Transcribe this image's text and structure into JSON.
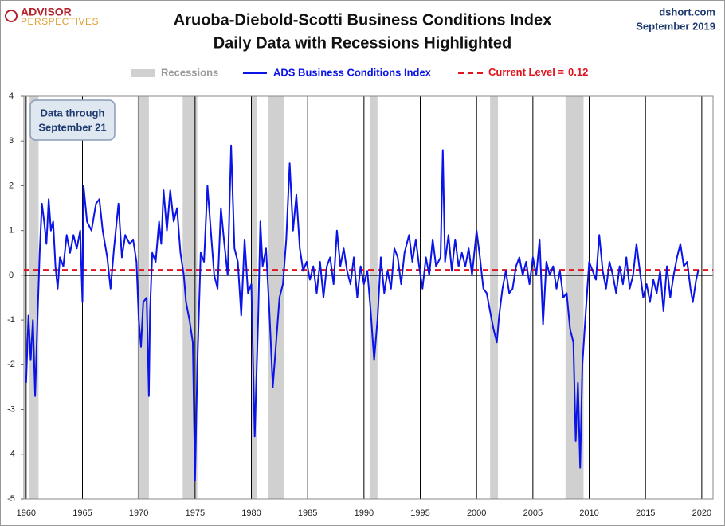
{
  "chart_data": {
    "type": "line",
    "title": "Aruoba-Diebold-Scotti Business Conditions Index",
    "subtitle": "Daily Data with Recessions Highlighted",
    "logo": {
      "top": "ADVISOR",
      "bottom": "PERSPECTIVES"
    },
    "source": "dshort.com",
    "date": "September 2019",
    "annotation": [
      "Data through",
      "September 21"
    ],
    "recessions_name": "Recessions",
    "recessions_color": "#d0d0d0",
    "recessions": [
      [
        1960.3,
        1961.1
      ],
      [
        1969.9,
        1970.9
      ],
      [
        1973.9,
        1975.2
      ],
      [
        1980.0,
        1980.5
      ],
      [
        1981.5,
        1982.9
      ],
      [
        1990.5,
        1991.2
      ],
      [
        2001.2,
        2001.9
      ],
      [
        2007.9,
        2009.5
      ]
    ],
    "current_level": {
      "name": "Current Level =",
      "value": 0.12,
      "color": "#e0141e"
    },
    "xlim": [
      1959.8,
      2021
    ],
    "xticks": [
      1960,
      1965,
      1970,
      1975,
      1980,
      1985,
      1990,
      1995,
      2000,
      2005,
      2010,
      2015,
      2020
    ],
    "ylim": [
      -5,
      4
    ],
    "yticks": [
      -5,
      -4,
      -3,
      -2,
      -1,
      0,
      1,
      2,
      3,
      4
    ],
    "series": [
      {
        "name": "ADS Business Conditions Index",
        "color": "#0a14e6",
        "x": [
          1960.0,
          1960.2,
          1960.4,
          1960.6,
          1960.8,
          1961.0,
          1961.2,
          1961.4,
          1961.6,
          1961.8,
          1962.0,
          1962.2,
          1962.4,
          1962.6,
          1962.8,
          1963.0,
          1963.3,
          1963.6,
          1963.9,
          1964.2,
          1964.5,
          1964.8,
          1965.0,
          1965.1,
          1965.4,
          1965.8,
          1966.2,
          1966.5,
          1966.8,
          1967.2,
          1967.5,
          1967.8,
          1968.2,
          1968.5,
          1968.8,
          1969.2,
          1969.5,
          1969.8,
          1970.0,
          1970.2,
          1970.4,
          1970.7,
          1970.9,
          1971.0,
          1971.2,
          1971.5,
          1971.8,
          1972.0,
          1972.2,
          1972.5,
          1972.8,
          1973.1,
          1973.4,
          1973.7,
          1974.0,
          1974.2,
          1974.5,
          1974.8,
          1975.0,
          1975.2,
          1975.5,
          1975.8,
          1976.1,
          1976.4,
          1976.7,
          1977.0,
          1977.3,
          1977.6,
          1977.9,
          1978.2,
          1978.5,
          1978.8,
          1979.1,
          1979.4,
          1979.7,
          1980.0,
          1980.3,
          1980.6,
          1980.8,
          1981.0,
          1981.3,
          1981.6,
          1981.9,
          1982.2,
          1982.5,
          1982.8,
          1983.1,
          1983.4,
          1983.7,
          1984.0,
          1984.3,
          1984.6,
          1984.9,
          1985.2,
          1985.5,
          1985.8,
          1986.1,
          1986.4,
          1986.7,
          1987.0,
          1987.3,
          1987.6,
          1987.9,
          1988.2,
          1988.5,
          1988.8,
          1989.1,
          1989.4,
          1989.7,
          1990.0,
          1990.3,
          1990.6,
          1990.9,
          1991.2,
          1991.5,
          1991.8,
          1992.1,
          1992.4,
          1992.7,
          1993.0,
          1993.3,
          1993.6,
          1994.0,
          1994.3,
          1994.6,
          1994.9,
          1995.2,
          1995.5,
          1995.8,
          1996.1,
          1996.4,
          1996.8,
          1997.0,
          1997.2,
          1997.5,
          1997.8,
          1998.1,
          1998.4,
          1998.7,
          1999.0,
          1999.3,
          1999.6,
          2000.0,
          2000.3,
          2000.6,
          2000.9,
          2001.2,
          2001.5,
          2001.8,
          2002.0,
          2002.3,
          2002.6,
          2002.9,
          2003.2,
          2003.5,
          2003.8,
          2004.1,
          2004.4,
          2004.7,
          2005.0,
          2005.3,
          2005.6,
          2005.9,
          2006.2,
          2006.5,
          2006.8,
          2007.1,
          2007.4,
          2007.7,
          2008.0,
          2008.3,
          2008.6,
          2008.8,
          2009.0,
          2009.2,
          2009.4,
          2009.7,
          2010.0,
          2010.3,
          2010.6,
          2010.9,
          2011.2,
          2011.5,
          2011.8,
          2012.1,
          2012.4,
          2012.7,
          2013.0,
          2013.3,
          2013.6,
          2013.9,
          2014.2,
          2014.5,
          2014.8,
          2015.1,
          2015.4,
          2015.7,
          2016.0,
          2016.3,
          2016.6,
          2016.9,
          2017.2,
          2017.5,
          2017.8,
          2018.1,
          2018.4,
          2018.7,
          2019.0,
          2019.2,
          2019.5,
          2019.7
        ],
        "values": [
          -2.4,
          -0.9,
          -1.9,
          -1.0,
          -2.7,
          -1.0,
          0.5,
          1.6,
          1.2,
          0.7,
          1.7,
          1.0,
          1.2,
          0.2,
          -0.3,
          0.4,
          0.2,
          0.9,
          0.5,
          0.9,
          0.6,
          1.0,
          -0.6,
          2.0,
          1.2,
          1.0,
          1.6,
          1.7,
          1.0,
          0.4,
          -0.3,
          0.6,
          1.6,
          0.4,
          0.9,
          0.7,
          0.8,
          0.3,
          -1.0,
          -1.6,
          -0.6,
          -0.5,
          -2.7,
          -0.8,
          0.5,
          0.3,
          1.2,
          0.7,
          1.9,
          1.0,
          1.9,
          1.2,
          1.5,
          0.5,
          0.0,
          -0.6,
          -1.0,
          -1.5,
          -4.6,
          -2.0,
          0.5,
          0.3,
          2.0,
          1.0,
          0.0,
          -0.3,
          1.5,
          0.7,
          0.0,
          2.9,
          0.6,
          0.3,
          -0.9,
          0.8,
          -0.4,
          -0.2,
          -3.6,
          -1.0,
          1.2,
          0.2,
          0.6,
          -0.8,
          -2.5,
          -1.5,
          -0.5,
          -0.2,
          0.8,
          2.5,
          1.0,
          1.8,
          0.6,
          0.1,
          0.3,
          -0.1,
          0.2,
          -0.4,
          0.3,
          -0.5,
          0.2,
          0.4,
          -0.2,
          1.0,
          0.2,
          0.6,
          0.1,
          -0.2,
          0.4,
          -0.5,
          0.2,
          -0.2,
          0.1,
          -0.8,
          -1.9,
          -1.0,
          0.4,
          -0.4,
          0.1,
          -0.3,
          0.6,
          0.4,
          -0.2,
          0.5,
          0.9,
          0.3,
          0.8,
          0.2,
          -0.3,
          0.4,
          0.0,
          0.8,
          0.2,
          0.4,
          2.8,
          0.3,
          0.9,
          0.1,
          0.8,
          0.2,
          0.5,
          0.2,
          0.6,
          0.0,
          1.0,
          0.4,
          -0.3,
          -0.4,
          -0.8,
          -1.2,
          -1.5,
          -0.9,
          -0.3,
          0.1,
          -0.4,
          -0.3,
          0.2,
          0.4,
          0.0,
          0.3,
          -0.2,
          0.4,
          0.0,
          0.8,
          -1.1,
          0.3,
          0.0,
          0.2,
          -0.3,
          0.1,
          -0.5,
          -0.4,
          -1.2,
          -1.5,
          -3.7,
          -2.4,
          -4.3,
          -2.0,
          -0.8,
          0.3,
          0.1,
          -0.1,
          0.9,
          0.1,
          -0.3,
          0.3,
          0.0,
          -0.4,
          0.2,
          -0.2,
          0.4,
          -0.3,
          0.0,
          0.7,
          0.1,
          -0.5,
          -0.2,
          -0.6,
          -0.1,
          -0.4,
          0.1,
          -0.8,
          0.2,
          -0.5,
          0.0,
          0.4,
          0.7,
          0.2,
          0.3,
          -0.3,
          -0.6,
          -0.1,
          0.12
        ]
      }
    ]
  }
}
